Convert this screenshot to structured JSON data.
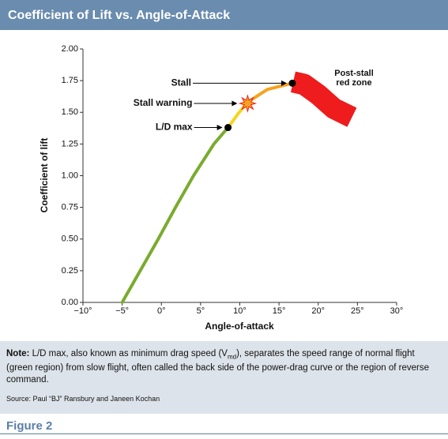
{
  "chart_data": {
    "type": "line",
    "title": "Coefficient of Lift vs. Angle-of-Attack",
    "x_label": "Angle-of-attack",
    "y_label": "Coefficient of lift",
    "xlim": [
      -10,
      30
    ],
    "ylim": [
      0,
      2
    ],
    "xticks": [
      {
        "value": -10,
        "label": "−10°"
      },
      {
        "value": -5,
        "label": "−5°"
      },
      {
        "value": 0,
        "label": "0°"
      },
      {
        "value": 5,
        "label": "5°"
      },
      {
        "value": 10,
        "label": "10°"
      },
      {
        "value": 15,
        "label": "15°"
      },
      {
        "value": 20,
        "label": "20°"
      },
      {
        "value": 25,
        "label": "25°"
      },
      {
        "value": 30,
        "label": "30°"
      }
    ],
    "yticks": [
      {
        "value": 0,
        "label": "0.00"
      },
      {
        "value": 0.25,
        "label": "0.25"
      },
      {
        "value": 0.5,
        "label": "0.50"
      },
      {
        "value": 0.75,
        "label": "0.75"
      },
      {
        "value": 1,
        "label": "1.00"
      },
      {
        "value": 1.25,
        "label": "1.25"
      },
      {
        "value": 1.5,
        "label": "1.50"
      },
      {
        "value": 1.75,
        "label": "1.75"
      },
      {
        "value": 2,
        "label": "2.00"
      }
    ],
    "series": [
      {
        "color": "#7aab2e",
        "x": [
          -5,
          -2.7,
          -0.4,
          1.8,
          4.1,
          6.7,
          8.5
        ],
        "values": [
          0,
          0.25,
          0.5,
          0.75,
          1.0,
          1.25,
          1.38
        ]
      },
      {
        "color": "#f6d41c",
        "x": [
          8.5,
          9.8,
          11.0
        ],
        "values": [
          1.38,
          1.49,
          1.58
        ]
      },
      {
        "color": "#f6a21e",
        "x": [
          11.0,
          13.5,
          16.7
        ],
        "values": [
          1.58,
          1.68,
          1.73
        ]
      }
    ],
    "red_zone": {
      "label": [
        "Post-stall",
        "red zone"
      ],
      "color": "#ee1c1c",
      "x": [
        16.8,
        18.2,
        20,
        22,
        24.3
      ],
      "values": [
        1.74,
        1.72,
        1.64,
        1.53,
        1.46
      ]
    },
    "points": [
      {
        "label": "L/D max",
        "x": 8.5,
        "y": 1.38,
        "marker": "circle"
      },
      {
        "label": "Stall warning",
        "x": 11.0,
        "y": 1.57,
        "marker": "star"
      },
      {
        "label": "Stall",
        "x": 16.7,
        "y": 1.73,
        "marker": "circle"
      }
    ]
  },
  "note": {
    "lead": "Note:",
    "text1": "L/D max, also known as minimum drag speed (V",
    "sub": "md",
    "text2": "), separates the speed range of normal flight (green region) from slow flight, often called the back side of the power-drag curve or the region of reverse command.",
    "source": "Source: Paul “BJ” Ransbury and Janeen Kochan"
  },
  "figure": "Figure 2"
}
